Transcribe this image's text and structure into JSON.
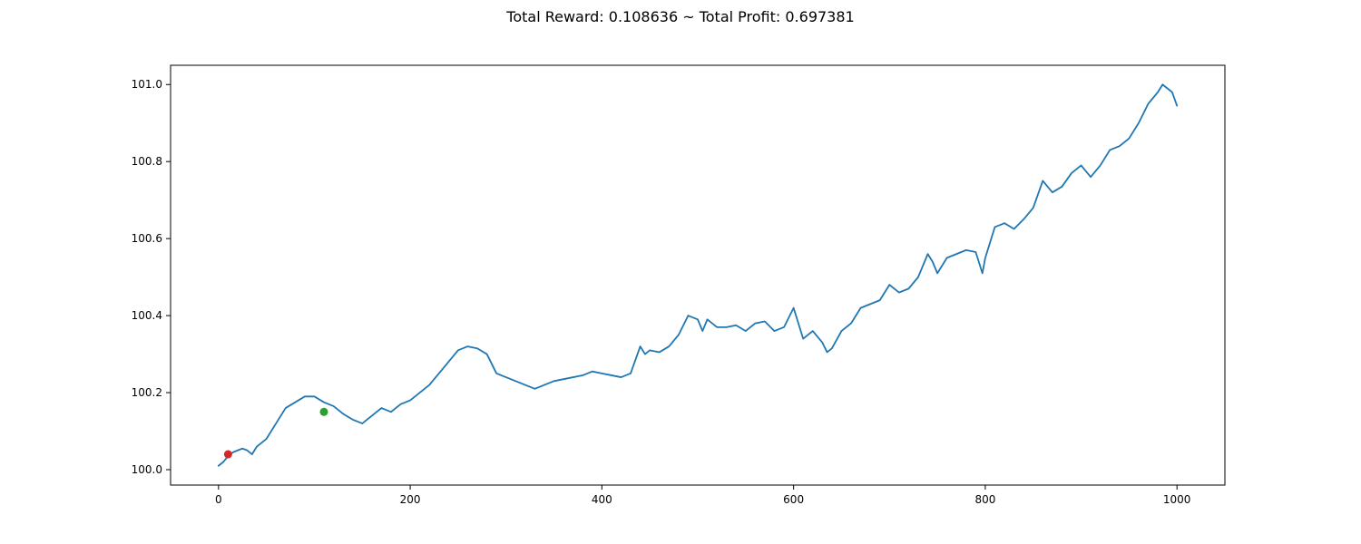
{
  "figure": {
    "title": "Total Reward: 0.108636 ~ Total Profit: 0.697381"
  },
  "chart_data": {
    "type": "line",
    "title": "Total Reward: 0.108636 ~ Total Profit: 0.697381",
    "xlabel": "",
    "ylabel": "",
    "xlim": [
      -50,
      1050
    ],
    "ylim": [
      99.96,
      101.05
    ],
    "xticks": [
      0,
      200,
      400,
      600,
      800,
      1000
    ],
    "yticks": [
      100.0,
      100.2,
      100.4,
      100.6,
      100.8,
      101.0
    ],
    "xtick_labels": [
      "0",
      "200",
      "400",
      "600",
      "800",
      "1000"
    ],
    "ytick_labels": [
      "100.0",
      "100.2",
      "100.4",
      "100.6",
      "100.8",
      "101.0"
    ],
    "grid": false,
    "series": [
      {
        "color": "#1f77b4",
        "x": [
          0,
          5,
          10,
          15,
          20,
          25,
          30,
          35,
          40,
          50,
          60,
          70,
          80,
          90,
          100,
          110,
          120,
          130,
          140,
          150,
          160,
          170,
          180,
          190,
          200,
          210,
          220,
          230,
          240,
          250,
          260,
          270,
          280,
          290,
          300,
          310,
          320,
          330,
          340,
          350,
          360,
          370,
          380,
          390,
          400,
          410,
          420,
          430,
          440,
          445,
          450,
          460,
          470,
          480,
          490,
          500,
          505,
          510,
          520,
          530,
          540,
          550,
          560,
          570,
          580,
          590,
          600,
          610,
          620,
          630,
          635,
          640,
          650,
          660,
          670,
          680,
          690,
          700,
          710,
          720,
          730,
          740,
          745,
          750,
          760,
          770,
          780,
          790,
          797,
          800,
          810,
          820,
          830,
          840,
          850,
          860,
          870,
          880,
          890,
          900,
          910,
          920,
          930,
          940,
          950,
          960,
          970,
          980,
          985,
          990,
          995,
          1000
        ],
        "y": [
          100.01,
          100.02,
          100.035,
          100.045,
          100.05,
          100.055,
          100.05,
          100.04,
          100.06,
          100.08,
          100.12,
          100.16,
          100.175,
          100.19,
          100.19,
          100.175,
          100.165,
          100.145,
          100.13,
          100.12,
          100.14,
          100.16,
          100.15,
          100.17,
          100.18,
          100.2,
          100.22,
          100.25,
          100.28,
          100.31,
          100.32,
          100.315,
          100.3,
          100.25,
          100.24,
          100.23,
          100.22,
          100.21,
          100.22,
          100.23,
          100.235,
          100.24,
          100.245,
          100.255,
          100.25,
          100.245,
          100.24,
          100.25,
          100.32,
          100.3,
          100.31,
          100.305,
          100.32,
          100.35,
          100.4,
          100.39,
          100.36,
          100.39,
          100.37,
          100.37,
          100.375,
          100.36,
          100.38,
          100.385,
          100.36,
          100.37,
          100.42,
          100.34,
          100.36,
          100.33,
          100.305,
          100.315,
          100.36,
          100.38,
          100.42,
          100.43,
          100.44,
          100.48,
          100.46,
          100.47,
          100.5,
          100.56,
          100.54,
          100.51,
          100.55,
          100.56,
          100.57,
          100.565,
          100.51,
          100.55,
          100.63,
          100.64,
          100.625,
          100.65,
          100.68,
          100.75,
          100.72,
          100.735,
          100.77,
          100.79,
          100.76,
          100.79,
          100.83,
          100.84,
          100.86,
          100.9,
          100.95,
          100.98,
          101.0,
          100.99,
          100.98,
          100.945
        ]
      }
    ],
    "markers": [
      {
        "x": 10,
        "y": 100.04,
        "color": "#d62728"
      },
      {
        "x": 110,
        "y": 100.15,
        "color": "#2ca02c"
      }
    ]
  }
}
